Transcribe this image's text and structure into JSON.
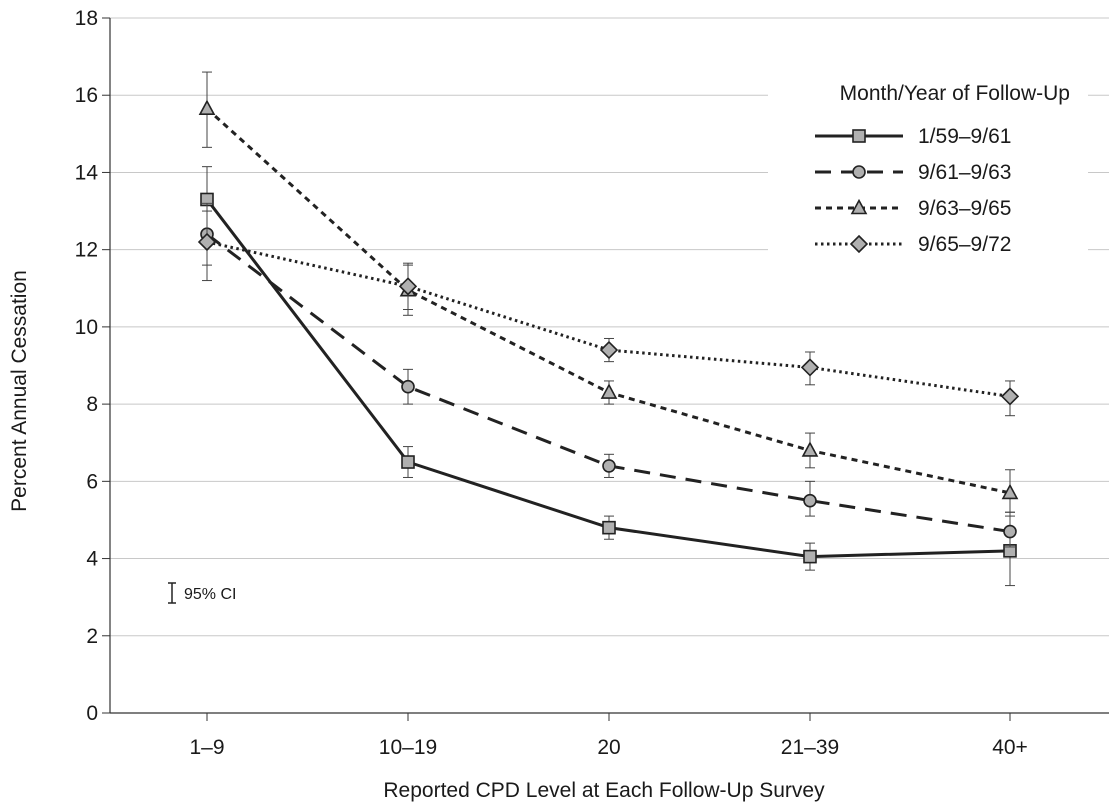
{
  "chart_data": {
    "type": "line",
    "title": "",
    "xlabel": "Reported CPD Level at Each Follow-Up Survey",
    "ylabel": "Percent Annual Cessation",
    "categories": [
      "1–9",
      "10–19",
      "20",
      "21–39",
      "40+"
    ],
    "ylim": [
      0,
      18
    ],
    "yticks": [
      0,
      2,
      4,
      6,
      8,
      10,
      12,
      14,
      16,
      18
    ],
    "grid": "horizontal",
    "legend": {
      "title": "Month/Year of Follow-Up",
      "position": "top-right"
    },
    "ci_note": "95% CI",
    "series": [
      {
        "name": "1/59–9/61",
        "marker": "square",
        "line_style": "solid",
        "values": [
          13.3,
          6.5,
          4.8,
          4.05,
          4.2
        ],
        "ci_low": [
          12.5,
          6.1,
          4.5,
          3.7,
          3.3
        ],
        "ci_high": [
          14.15,
          6.9,
          5.1,
          4.4,
          5.1
        ]
      },
      {
        "name": "9/61–9/63",
        "marker": "circle",
        "line_style": "dashed",
        "values": [
          12.4,
          8.45,
          6.4,
          5.5,
          4.7
        ],
        "ci_low": [
          11.6,
          8.0,
          6.1,
          5.1,
          4.3
        ],
        "ci_high": [
          13.2,
          8.9,
          6.7,
          6.0,
          5.2
        ]
      },
      {
        "name": "9/63–9/65",
        "marker": "triangle",
        "line_style": "short-dashed",
        "values": [
          15.65,
          10.95,
          8.3,
          6.8,
          5.7
        ],
        "ci_low": [
          14.65,
          10.3,
          8.0,
          6.35,
          5.2
        ],
        "ci_high": [
          16.6,
          11.6,
          8.6,
          7.25,
          6.3
        ]
      },
      {
        "name": "9/65–9/72",
        "marker": "diamond",
        "line_style": "dotted",
        "values": [
          12.2,
          11.05,
          9.4,
          8.95,
          8.2
        ],
        "ci_low": [
          11.2,
          10.45,
          9.1,
          8.5,
          7.7
        ],
        "ci_high": [
          13.0,
          11.65,
          9.7,
          9.35,
          8.6
        ]
      }
    ]
  },
  "colors": {
    "line": "#222222",
    "marker_fill": "#b0b0b0",
    "grid": "#c8c8c8",
    "axis": "#333333"
  }
}
